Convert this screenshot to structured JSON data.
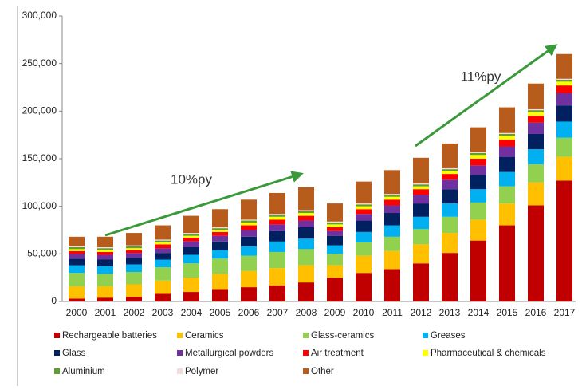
{
  "chart_data": {
    "type": "stacked_bar",
    "categories": [
      "2000",
      "2001",
      "2002",
      "2003",
      "2004",
      "2005",
      "2006",
      "2007",
      "2008",
      "2009",
      "2010",
      "2011",
      "2012",
      "2013",
      "2014",
      "2015",
      "2016",
      "2017"
    ],
    "series": [
      {
        "name": "Rechargeable batteries",
        "color": "#c00000",
        "values": [
          3000,
          4000,
          5000,
          8000,
          10000,
          13000,
          15000,
          17000,
          20000,
          25000,
          30000,
          34000,
          40000,
          51000,
          64000,
          80000,
          101000,
          127000
        ]
      },
      {
        "name": "Ceramics",
        "color": "#ffc000",
        "values": [
          13000,
          12000,
          13000,
          14000,
          15000,
          16000,
          17000,
          18000,
          18000,
          13000,
          18000,
          19000,
          20000,
          21000,
          22000,
          23000,
          24000,
          25000
        ]
      },
      {
        "name": "Glass-ceramics",
        "color": "#92d050",
        "values": [
          14000,
          13000,
          13000,
          14000,
          15000,
          16000,
          16000,
          17000,
          17000,
          12000,
          14000,
          15000,
          16000,
          17000,
          18000,
          18000,
          19000,
          20000
        ]
      },
      {
        "name": "Greases",
        "color": "#00b0f0",
        "values": [
          8000,
          8000,
          8000,
          8000,
          9000,
          9000,
          10000,
          11000,
          11000,
          9000,
          11000,
          12000,
          13000,
          14000,
          14000,
          15000,
          16000,
          17000
        ]
      },
      {
        "name": "Glass",
        "color": "#002060",
        "values": [
          7000,
          7000,
          7000,
          7000,
          8000,
          9000,
          10000,
          11000,
          12000,
          10000,
          12000,
          13000,
          14000,
          15000,
          15000,
          16000,
          16000,
          17000
        ]
      },
      {
        "name": "Metallurgical powders",
        "color": "#7030a0",
        "values": [
          5000,
          5000,
          5000,
          5000,
          6000,
          6000,
          7000,
          7000,
          7000,
          5000,
          7000,
          8000,
          9000,
          10000,
          10000,
          11000,
          12000,
          13000
        ]
      },
      {
        "name": "Air treatment",
        "color": "#ff0000",
        "values": [
          3000,
          3000,
          3000,
          4000,
          4000,
          4000,
          5000,
          5000,
          5000,
          4000,
          5000,
          6000,
          6000,
          6000,
          7000,
          7000,
          7000,
          8000
        ]
      },
      {
        "name": "Pharmaceutical & chemicals",
        "color": "#ffff00",
        "values": [
          2000,
          2000,
          2000,
          2000,
          2000,
          2000,
          3000,
          3000,
          3000,
          3000,
          3000,
          3000,
          3000,
          3000,
          4000,
          4000,
          4000,
          4000
        ]
      },
      {
        "name": "Aluminium",
        "color": "#5e9e32",
        "values": [
          2000,
          2000,
          2000,
          2000,
          2000,
          2000,
          2000,
          2000,
          2000,
          2000,
          2000,
          2000,
          2000,
          2000,
          2000,
          2000,
          2000,
          2000
        ]
      },
      {
        "name": "Polymer",
        "color": "#f2dcdb",
        "values": [
          1000,
          1000,
          1000,
          1000,
          1000,
          1000,
          1000,
          1000,
          1000,
          1000,
          1000,
          1000,
          1000,
          1000,
          1000,
          1000,
          1000,
          1000
        ]
      },
      {
        "name": "Other",
        "color": "#b85c1e",
        "values": [
          10000,
          11000,
          13000,
          15000,
          18000,
          19000,
          21000,
          22000,
          24000,
          19000,
          23000,
          25000,
          27000,
          26000,
          26000,
          27000,
          27000,
          26000
        ]
      }
    ],
    "ylim": [
      0,
      300000
    ],
    "yticks": [
      {
        "value": 0,
        "label": "0"
      },
      {
        "value": 50000,
        "label": "50,000"
      },
      {
        "value": 100000,
        "label": "100,000"
      },
      {
        "value": 150000,
        "label": "150,000"
      },
      {
        "value": 200000,
        "label": "200,000"
      },
      {
        "value": 250000,
        "label": "250,000"
      },
      {
        "value": 300000,
        "label": "300,000"
      }
    ],
    "annotations": [
      {
        "text": "10%py"
      },
      {
        "text": "11%py"
      }
    ]
  }
}
